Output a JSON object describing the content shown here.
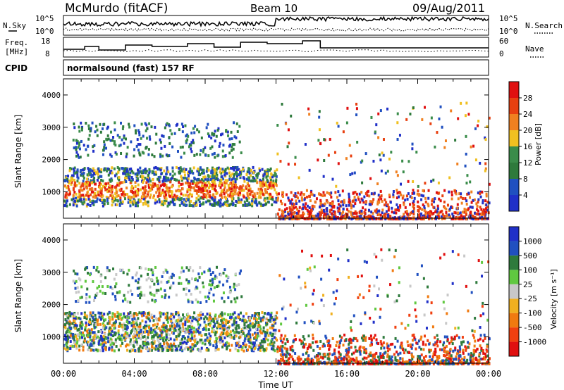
{
  "header": {
    "station": "McMurdo (fitACF)",
    "beam": "Beam 10",
    "date": "09/Aug/2011"
  },
  "strip_labels": {
    "nsky": "N.Sky",
    "nsearch": "N.Search",
    "freq_line1": "Freq.",
    "freq_line2": "[MHz]",
    "nave": "Nave",
    "cpid": "CPID",
    "nsky_ticks": [
      "10^5",
      "10^0"
    ],
    "nsearch_ticks": [
      "10^5",
      "10^0"
    ],
    "freq_ticks": [
      "18",
      "8"
    ],
    "nave_ticks": [
      "60",
      "0"
    ]
  },
  "cpid_text": "normalsound (fast) 157 RF",
  "colors": {
    "power": [
      "#2030c8",
      "#2050c0",
      "#2e7a3c",
      "#3a8c4a",
      "#f0c020",
      "#f08020",
      "#e84010",
      "#e01010"
    ],
    "velocity": [
      "#e01010",
      "#f04010",
      "#f07a10",
      "#f0b020",
      "#c8c8c8",
      "#60c840",
      "#2e7a3c",
      "#2050c0",
      "#2030c8"
    ]
  },
  "chart_data": [
    {
      "type": "heatmap",
      "ylabel": "Slant Range [km]",
      "ylim": [
        180,
        4500
      ],
      "yticks": [
        "1000",
        "2000",
        "3000",
        "4000"
      ],
      "x_range": [
        0,
        24
      ],
      "xticks": [
        "00:00",
        "04:00",
        "08:00",
        "12:00",
        "16:00",
        "20:00",
        "00:00"
      ],
      "xlabel": "Time UT",
      "colorbar": {
        "label": "Power [dB]",
        "tick_labels": [
          "28",
          "24",
          "20",
          "16",
          "12",
          "8",
          "4"
        ],
        "range": [
          0,
          32
        ]
      }
    },
    {
      "type": "heatmap",
      "ylabel": "Slant Range [km]",
      "ylim": [
        180,
        4500
      ],
      "yticks": [
        "1000",
        "2000",
        "3000",
        "4000"
      ],
      "x_range": [
        0,
        24
      ],
      "xticks": [
        "00:00",
        "04:00",
        "08:00",
        "12:00",
        "16:00",
        "20:00",
        "00:00"
      ],
      "xlabel": "Time UT",
      "colorbar": {
        "label": "Velocity [m s⁻¹]",
        "tick_labels": [
          "1000",
          "500",
          "100",
          "25",
          "-25",
          "-100",
          "-500",
          "-1000"
        ]
      }
    }
  ]
}
